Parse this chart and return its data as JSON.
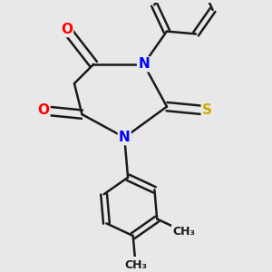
{
  "bg_color": "#e8e8e8",
  "bond_color": "#1a1a1a",
  "bond_width": 1.8,
  "atom_colors": {
    "O": "#ff0000",
    "N": "#0000ff",
    "S": "#ccaa00",
    "C": "#1a1a1a"
  },
  "font_size_atom": 11,
  "font_size_methyl": 9
}
